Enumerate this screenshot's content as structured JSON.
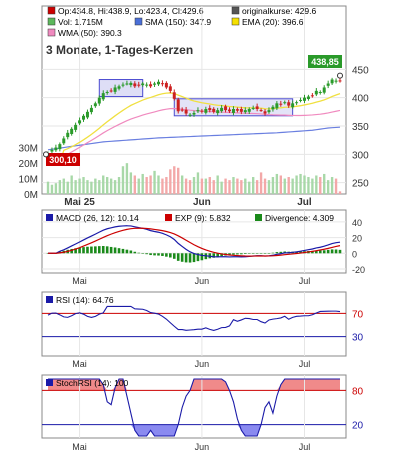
{
  "price_panel": {
    "legend": [
      {
        "label": "Op:434.8, Hi:438.9, Lo:423.4, Cl:429.6",
        "color": "#cc0000"
      },
      {
        "label": "originalkurse: 429.6",
        "color": "#555555"
      },
      {
        "label": "Vol: 1.715M",
        "color": "#5cb85c"
      },
      {
        "label": "SMA (150): 347.9",
        "color": "#4a6fd8"
      },
      {
        "label": "EMA (20): 396.6",
        "color": "#f5e000"
      },
      {
        "label": "WMA (50): 390.3",
        "color": "#f08abf"
      }
    ],
    "subtitle": "3 Monate, 1-Tages-Kerzen",
    "last_price_label": "438,85",
    "low_price_label": "300,10",
    "price_ticks": [
      "450",
      "400",
      "350",
      "300",
      "250"
    ],
    "volume_ticks": [
      "30M",
      "20M",
      "10M",
      "0M"
    ],
    "month_labels": [
      "Mai 25",
      "Jun",
      "Jul"
    ]
  },
  "macd_panel": {
    "legend": [
      {
        "label": "MACD (26, 12): 10.14",
        "color": "#1a1aa8"
      },
      {
        "label": "EXP (9): 5.832",
        "color": "#cc0000"
      },
      {
        "label": "Divergence: 4.309",
        "color": "#1a8a1a"
      }
    ],
    "ticks": [
      "40",
      "20",
      "0",
      "-20"
    ],
    "month_labels": [
      "Mai",
      "Jun",
      "Jul"
    ]
  },
  "rsi_panel": {
    "legend": [
      {
        "label": "RSI (14): 64.76",
        "color": "#1a1aa8"
      }
    ],
    "ticks": [
      "70",
      "30"
    ],
    "month_labels": [
      "Mai",
      "Jun",
      "Jul"
    ]
  },
  "stochrsi_panel": {
    "legend": [
      {
        "label": "StochRSI (14): 100",
        "color": "#1a1aa8"
      }
    ],
    "ticks": [
      "80",
      "20"
    ],
    "month_labels": [
      "Mai",
      "Jun",
      "Jul"
    ]
  },
  "chart_data": [
    {
      "type": "candlestick",
      "title": "3 Monate, 1-Tages-Kerzen",
      "ylim": [
        230,
        470
      ],
      "close": [
        302,
        308,
        312,
        318,
        328,
        338,
        345,
        352,
        360,
        368,
        375,
        382,
        390,
        400,
        408,
        410,
        412,
        418,
        420,
        423,
        425,
        426,
        420,
        422,
        425,
        423,
        420,
        425,
        428,
        424,
        418,
        412,
        398,
        376,
        378,
        372,
        370,
        373,
        378,
        376,
        380,
        378,
        375,
        378,
        382,
        378,
        376,
        380,
        377,
        375,
        378,
        380,
        382,
        380,
        378,
        372,
        378,
        384,
        390,
        388,
        392,
        386,
        390,
        392,
        396,
        400,
        402,
        404,
        412,
        410,
        418,
        425,
        432,
        430,
        429.6
      ],
      "sma150": [
        308,
        309,
        310,
        311,
        312,
        313,
        314,
        315,
        316,
        317,
        318,
        319,
        320,
        321,
        322,
        322.5,
        323,
        323.5,
        324,
        324.5,
        325,
        325.5,
        326,
        326.5,
        327,
        327.5,
        328,
        328.5,
        329,
        329.3,
        329.6,
        329.9,
        330.2,
        330.5,
        330.8,
        331.1,
        331.4,
        331.7,
        332,
        332.3,
        332.6,
        332.9,
        333.2,
        333.5,
        333.8,
        334.1,
        334.4,
        334.7,
        335,
        335.3,
        335.6,
        335.9,
        336.2,
        336.5,
        336.8,
        337.1,
        337.4,
        337.7,
        338,
        338.5,
        339,
        339.5,
        340,
        340.5,
        341,
        341.5,
        342,
        342.5,
        343.5,
        344.5,
        345.5,
        346.5,
        347,
        347.5,
        347.9
      ],
      "ema20": [],
      "wma50": [],
      "volume": [
        8,
        6,
        7,
        9,
        10,
        8,
        12,
        9,
        10,
        11,
        9,
        8,
        10,
        9,
        12,
        11,
        10,
        9,
        11,
        18,
        20,
        14,
        12,
        10,
        13,
        11,
        12,
        15,
        12,
        10,
        11,
        16,
        18,
        17,
        12,
        10,
        9,
        11,
        14,
        10,
        10,
        11,
        9,
        12,
        8,
        10,
        9,
        11,
        10,
        9,
        10,
        8,
        11,
        9,
        14,
        10,
        9,
        11,
        13,
        12,
        10,
        11,
        10,
        12,
        13,
        12,
        11,
        10,
        12,
        11,
        13,
        9,
        11,
        10,
        1.715
      ],
      "volume_ylim": [
        0,
        35
      ]
    },
    {
      "type": "line",
      "name": "MACD",
      "ylim": [
        -20,
        50
      ],
      "macd": [],
      "signal": []
    },
    {
      "type": "line",
      "name": "RSI",
      "ylim": [
        0,
        100
      ],
      "values": []
    },
    {
      "type": "line",
      "name": "StochRSI",
      "ylim": [
        0,
        100
      ],
      "values": []
    }
  ]
}
